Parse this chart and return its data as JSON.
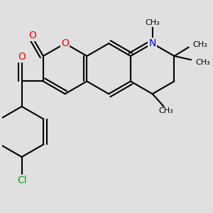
{
  "background_color": "#e0e0e0",
  "bond_color": "#000000",
  "bond_width": 1.5,
  "atom_colors": {
    "O": "#ff0000",
    "N": "#0000cc",
    "Cl": "#00aa00",
    "C": "#000000"
  },
  "fig_width": 3.0,
  "fig_height": 3.0,
  "dpi": 100,
  "xlim": [
    -0.5,
    6.5
  ],
  "ylim": [
    -2.5,
    3.0
  ]
}
